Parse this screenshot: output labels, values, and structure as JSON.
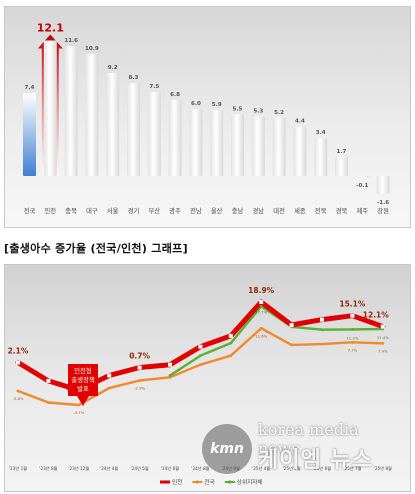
{
  "chart_data": [
    {
      "type": "bar",
      "categories": [
        "전국",
        "인천",
        "충북",
        "대구",
        "서울",
        "경기",
        "부산",
        "광주",
        "전남",
        "울산",
        "충남",
        "경남",
        "대전",
        "세종",
        "전북",
        "경북",
        "제주",
        "강원"
      ],
      "values": [
        7.4,
        12.1,
        11.6,
        10.9,
        9.2,
        8.3,
        7.5,
        6.8,
        6.0,
        5.9,
        5.5,
        5.3,
        5.2,
        4.4,
        3.4,
        1.7,
        -0.1,
        -1.6
      ],
      "value_labels": [
        "7.4",
        "12.1",
        "11.6",
        "10.9",
        "9.2",
        "8.3",
        "7.5",
        "6.8",
        "6.0",
        "5.9",
        "5.5",
        "5.3",
        "5.2",
        "4.4",
        "3.4",
        "1.7",
        "-0.1",
        "-1.6"
      ],
      "highlight_category": "인천",
      "colors": {
        "national": "#4a86d4",
        "incheon_label": "#c00000",
        "arrow": "#c00000",
        "others": "#ffffff"
      },
      "grid": false
    },
    {
      "type": "line",
      "title": "[출생아수 증가율 (전국/인천) 그래프]",
      "x": [
        "'23년 1월",
        "'23년 8월",
        "'23년 12월",
        "'24년 4월",
        "'24년 5월",
        "'24년 6월",
        "'24년 8월",
        "'24년 9월",
        "'25년 4월",
        "'25년 5월",
        "'25년 6월",
        "'25년 7월",
        "'25년 8월"
      ],
      "series": [
        {
          "name": "인천",
          "color": "#e00000",
          "values": [
            2.1,
            -3.0,
            -5.6,
            -1.5,
            0.7,
            1.5,
            6.5,
            9.5,
            18.9,
            12.5,
            14.0,
            15.1,
            12.1
          ]
        },
        {
          "name": "전국",
          "color": "#f08a2e",
          "values": [
            -5.8,
            -9.0,
            -9.7,
            -5.0,
            -2.9,
            -2.0,
            1.5,
            4.0,
            11.6,
            7.0,
            7.2,
            7.7,
            7.4
          ]
        },
        {
          "name": "상위지자체",
          "color": "#5cad34",
          "values": [
            null,
            null,
            null,
            null,
            null,
            -1.5,
            4.0,
            7.5,
            17.7,
            12.0,
            11.2,
            11.3,
            11.4
          ]
        }
      ],
      "data_labels": [
        {
          "series": "인천",
          "index": 0,
          "text": "2.1%"
        },
        {
          "series": "인천",
          "index": 2,
          "text": "-5.6%"
        },
        {
          "series": "인천",
          "index": 4,
          "text": "0.7%"
        },
        {
          "series": "인천",
          "index": 8,
          "text": "18.9%"
        },
        {
          "series": "인천",
          "index": 11,
          "text": "15.1%"
        },
        {
          "series": "인천",
          "index": 12,
          "text": "12.1%"
        },
        {
          "series": "전국",
          "index": 0,
          "text": "-5.8%"
        },
        {
          "series": "전국",
          "index": 2,
          "text": "-9.7%"
        },
        {
          "series": "전국",
          "index": 4,
          "text": "-2.9%"
        },
        {
          "series": "전국",
          "index": 8,
          "text": "11.6%"
        },
        {
          "series": "전국",
          "index": 11,
          "text": "7.7%"
        },
        {
          "series": "전국",
          "index": 12,
          "text": "7.4%"
        },
        {
          "series": "상위지자체",
          "index": 8,
          "text": "17.7%"
        },
        {
          "series": "상위지자체",
          "index": 11,
          "text": "11.3%"
        },
        {
          "series": "상위지자체",
          "index": 12,
          "text": "11.4%"
        }
      ],
      "annotation": {
        "text": [
          "인천형",
          "출생정책",
          "발표"
        ],
        "index": 2,
        "color": "#e00000"
      },
      "ylim": [
        -12,
        22
      ],
      "legend_position": "bottom",
      "grid": false
    }
  ],
  "watermark": {
    "logo": "kmn",
    "english": "korea media news",
    "korean": "케이엠 뉴스"
  }
}
